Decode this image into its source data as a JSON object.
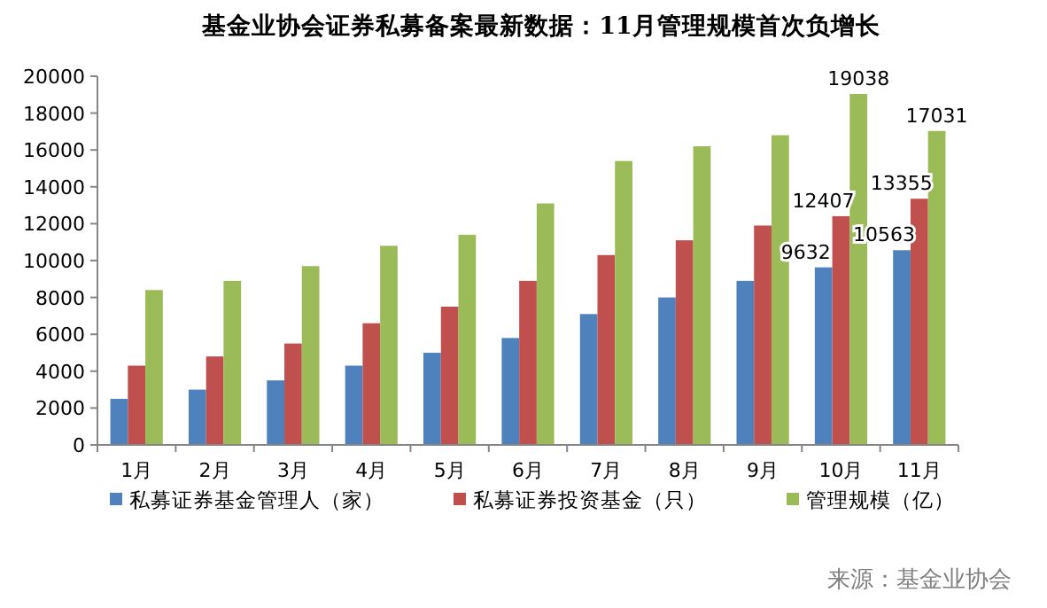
{
  "chart_data": {
    "type": "bar",
    "title": "基金业协会证券私募备案最新数据：11月管理规模首次负增长",
    "categories": [
      "1月",
      "2月",
      "3月",
      "4月",
      "5月",
      "6月",
      "7月",
      "8月",
      "9月",
      "10月",
      "11月"
    ],
    "series": [
      {
        "name": "私募证券基金管理人（家）",
        "color": "#4f81bd",
        "values": [
          2500,
          3000,
          3500,
          4300,
          5000,
          5800,
          7100,
          8000,
          8900,
          9632,
          10563
        ],
        "value_labels": [
          null,
          null,
          null,
          null,
          null,
          null,
          null,
          null,
          null,
          "9632",
          "10563"
        ]
      },
      {
        "name": "私募证券投资基金（只）",
        "color": "#c0504d",
        "values": [
          4300,
          4800,
          5500,
          6600,
          7500,
          8900,
          10300,
          11100,
          11900,
          12407,
          13355
        ],
        "value_labels": [
          null,
          null,
          null,
          null,
          null,
          null,
          null,
          null,
          null,
          "12407",
          "13355"
        ]
      },
      {
        "name": "管理规模（亿）",
        "color": "#9bbb59",
        "values": [
          8400,
          8900,
          9700,
          10800,
          11400,
          13100,
          15400,
          16200,
          16800,
          19038,
          17031
        ],
        "value_labels": [
          null,
          null,
          null,
          null,
          null,
          null,
          null,
          null,
          null,
          "19038",
          "17031"
        ]
      }
    ],
    "ylim": [
      0,
      20000
    ],
    "yticks": [
      0,
      2000,
      4000,
      6000,
      8000,
      10000,
      12000,
      14000,
      16000,
      18000,
      20000
    ],
    "grid": false,
    "legend": "bottom",
    "annotations": [
      "来源：基金业协会"
    ]
  }
}
